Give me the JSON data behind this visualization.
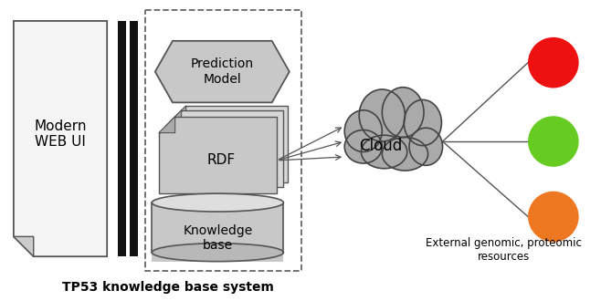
{
  "title": "TP53 knowledge base system",
  "web_ui_label": "Modern\nWEB UI",
  "prediction_model_label": "Prediction\nModel",
  "rdf_label": "RDF",
  "knowledge_base_label": "Knowledge\nbase",
  "cloud_label": "Cloud",
  "external_label": "External genomic, proteomic\nresources",
  "bg_color": "#ffffff",
  "box_fill": "#c8c8c8",
  "box_edge": "#555555",
  "dashed_box_edge": "#666666",
  "cloud_color": "#aaaaaa",
  "cloud_edge": "#555555",
  "red_circle": "#ee1111",
  "green_circle": "#66cc22",
  "orange_circle": "#ee7722",
  "web_ui_fill": "#f5f5f5",
  "line_color": "#555555",
  "fold_color": "#cccccc",
  "bar_color": "#111111"
}
